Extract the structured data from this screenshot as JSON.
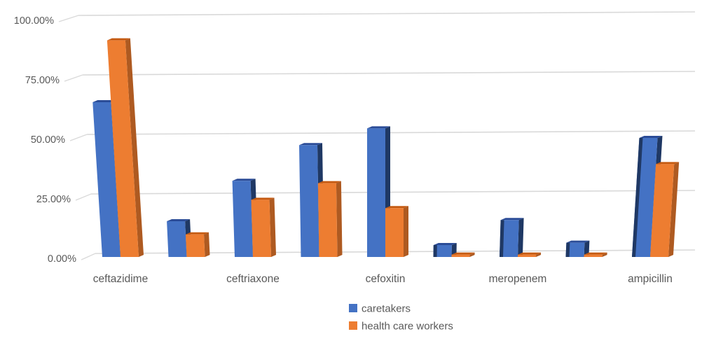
{
  "chart_data": {
    "type": "bar",
    "style": "3d-clustered-column",
    "title": "",
    "categories": [
      "ceftazidime",
      "",
      "ceftriaxone",
      "",
      "cefoxitin",
      "",
      "meropenem",
      "",
      "ampicillin"
    ],
    "x_axis_shown_labels": [
      "ceftazidime",
      "ceftriaxone",
      "cefoxitin",
      "meropenem",
      "ampicillin"
    ],
    "series": [
      {
        "name": "caretakers",
        "color": "#4472C4",
        "side_color": "#1F3864",
        "top_color": "#2B4C97",
        "values": [
          65,
          15,
          32,
          47,
          54,
          5,
          15.5,
          6,
          50
        ]
      },
      {
        "name": "health care workers",
        "color": "#ED7D31",
        "side_color": "#AE5A21",
        "top_color": "#C55A11",
        "values": [
          91,
          9.5,
          24,
          31,
          20.5,
          1,
          1,
          1,
          39
        ]
      }
    ],
    "y_axis": {
      "ticks": [
        "100.00%",
        "75.00%",
        "50.00%",
        "25.00%",
        "0.00%"
      ],
      "tick_values": [
        100,
        75,
        50,
        25,
        0
      ],
      "min": 0,
      "max": 100,
      "format": "percent-2dp"
    },
    "legend": {
      "position": "bottom",
      "entries": [
        "caretakers",
        "health care workers"
      ]
    },
    "grid": true,
    "gridline_color": "#D9D9D9",
    "text_color": "#595959",
    "background": "#FFFFFF"
  }
}
